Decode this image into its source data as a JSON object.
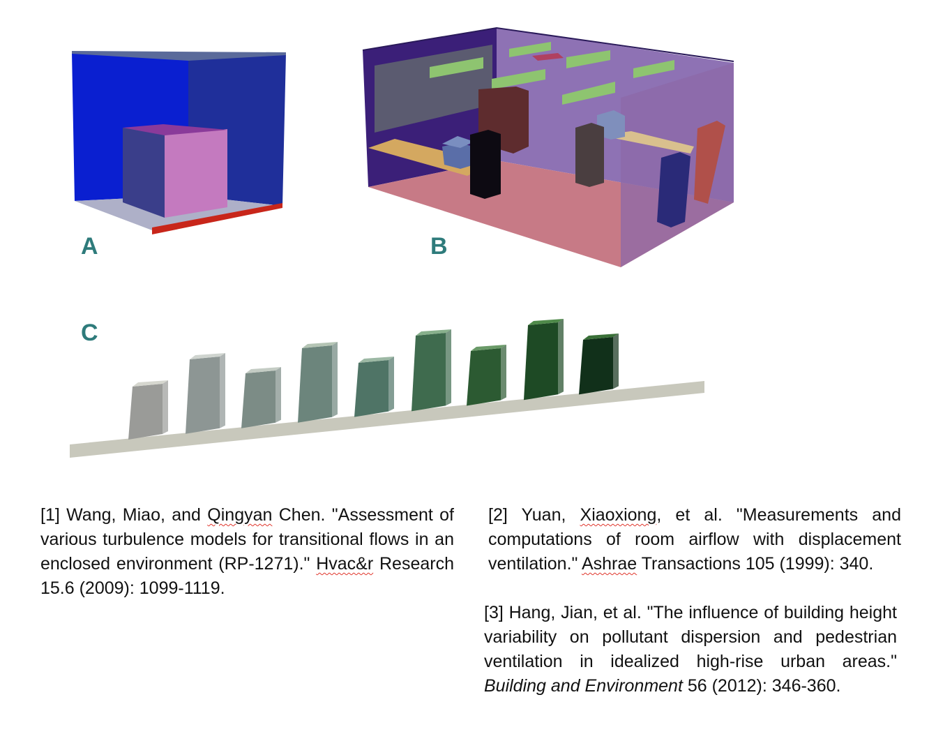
{
  "labels": {
    "a": "A",
    "b": "B",
    "c": "C"
  },
  "references": {
    "ref1": {
      "t1": "[1] Wang, Miao, and ",
      "t2": "Qingyan",
      "t3": " Chen. \"Assessment of various turbulence models for transitional flows in an enclosed environment (RP-1271).\" ",
      "t4": "Hvac&r",
      "t5": " Research 15.6 (2009): 1099-1119."
    },
    "ref2": {
      "t1": "[2] Yuan, ",
      "t2": "Xiaoxiong",
      "t3": ", et al. \"Measurements and computations of room airflow with displacement ventilation.\" ",
      "t4": "Ashrae",
      "t5": " Transactions 105 (1999): 340."
    },
    "ref3": {
      "t1": "[3] Hang, Jian, et al. \"The influence of building height variability on pollutant dispersion and pedestrian ventilation in idealized high-rise urban areas.\" ",
      "t2": "Building and Environment",
      "t3": " 56 (2012): 346-360."
    }
  },
  "colors": {
    "label": "#2e7b7b",
    "spellcheck_underline": "#e0352b"
  }
}
